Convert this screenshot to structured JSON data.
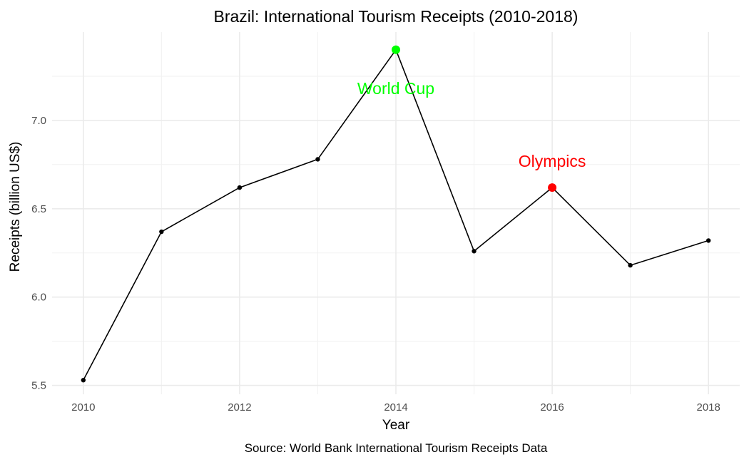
{
  "chart_data": {
    "type": "line",
    "title": "Brazil: International Tourism Receipts (2010-2018)",
    "xlabel": "Year",
    "ylabel": "Receipts (billion US$)",
    "caption": "Source: World Bank International Tourism Receipts Data",
    "x": [
      2010,
      2011,
      2012,
      2013,
      2014,
      2015,
      2016,
      2017,
      2018
    ],
    "values": [
      5.53,
      6.37,
      6.62,
      6.78,
      7.4,
      6.26,
      6.62,
      6.18,
      6.32
    ],
    "xlim": [
      2009.6,
      2018.4
    ],
    "ylim": [
      5.45,
      7.5
    ],
    "x_ticks": [
      "2010",
      "2012",
      "2014",
      "2016",
      "2018"
    ],
    "y_ticks": [
      "5.5",
      "6.0",
      "6.5",
      "7.0"
    ],
    "grid": true,
    "line_color": "#000000",
    "highlights": [
      {
        "x": 2014,
        "y": 7.4,
        "label": "World Cup",
        "color": "#00ff00"
      },
      {
        "x": 2016,
        "y": 6.62,
        "label": "Olympics",
        "color": "#ff0000"
      }
    ]
  }
}
